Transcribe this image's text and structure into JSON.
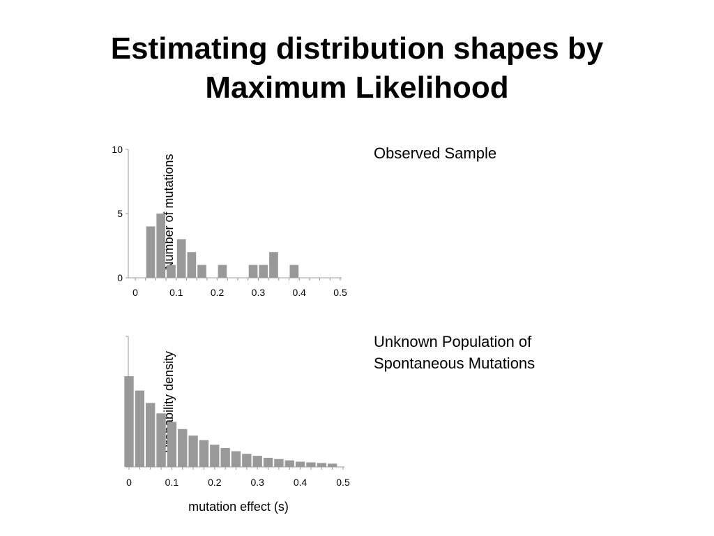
{
  "slide": {
    "title_line1": "Estimating distribution shapes by",
    "title_line2": "Maximum Likelihood"
  },
  "captions": {
    "observed": "Observed Sample",
    "population_line1": "Unknown Population of",
    "population_line2": "Spontaneous Mutations"
  },
  "colors": {
    "bar": "#999999",
    "axis": "#999999"
  },
  "chart_data": [
    {
      "type": "bar",
      "title": "",
      "xlabel": "",
      "ylabel": "Number of mutations",
      "x": [
        0.025,
        0.05,
        0.075,
        0.1,
        0.125,
        0.15,
        0.175,
        0.2,
        0.225,
        0.25,
        0.275,
        0.3,
        0.325,
        0.35,
        0.375,
        0.4,
        0.425,
        0.45,
        0.475,
        0.5
      ],
      "values": [
        0,
        4,
        5,
        1,
        3,
        2,
        1,
        0,
        1,
        0,
        0,
        1,
        1,
        2,
        0,
        1,
        0,
        0,
        0,
        0
      ],
      "xlim": [
        0,
        0.5
      ],
      "ylim": [
        0,
        10
      ],
      "xticks": [
        "0",
        "0.1",
        "0.2",
        "0.3",
        "0.4",
        "0.5"
      ],
      "yticks": [
        "0",
        "5",
        "10"
      ],
      "grid": false
    },
    {
      "type": "bar",
      "title": "",
      "xlabel": "mutation effect (s)",
      "ylabel": "Probability density",
      "x": [
        0.0125,
        0.0375,
        0.0625,
        0.0875,
        0.1125,
        0.1375,
        0.1625,
        0.1875,
        0.2125,
        0.2375,
        0.2625,
        0.2875,
        0.3125,
        0.3375,
        0.3625,
        0.3875,
        0.4125,
        0.4375,
        0.4625,
        0.4875
      ],
      "values": [
        1.39,
        1.17,
        0.98,
        0.82,
        0.69,
        0.58,
        0.48,
        0.41,
        0.34,
        0.29,
        0.24,
        0.2,
        0.17,
        0.14,
        0.12,
        0.1,
        0.08,
        0.07,
        0.06,
        0.05
      ],
      "xlim": [
        0,
        0.5
      ],
      "ylim": [
        0,
        2
      ],
      "xticks": [
        "0",
        "0.1",
        "0.2",
        "0.3",
        "0.4",
        "0.5"
      ],
      "yticks": [
        "",
        "",
        ""
      ],
      "grid": false
    }
  ]
}
